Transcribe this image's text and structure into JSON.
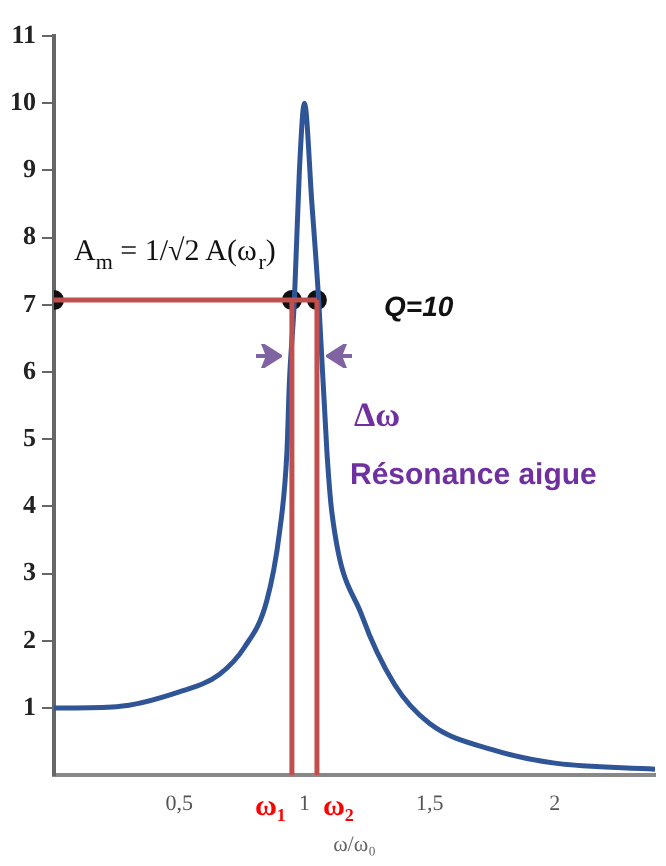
{
  "chart_data": {
    "type": "line",
    "xlabel": "ω/ω₀",
    "xlim": [
      0,
      2.4
    ],
    "ylim": [
      0,
      11
    ],
    "xticks": [
      {
        "value": 0.5,
        "label": "0,5"
      },
      {
        "value": 1,
        "label": "1"
      },
      {
        "value": 1.5,
        "label": "1,5"
      },
      {
        "value": 2,
        "label": "2"
      }
    ],
    "yticks": [
      1,
      2,
      3,
      4,
      5,
      6,
      7,
      8,
      9,
      10,
      11
    ],
    "grid": false,
    "legend": false,
    "series": [
      {
        "color": "#c0504d",
        "x": [
          0,
          0.95,
          1.05
        ],
        "values": [
          7.07,
          7.07,
          7.07
        ]
      },
      {
        "color": "#c0504d",
        "x": [
          0.95,
          0.95
        ],
        "values": [
          0,
          7.07
        ]
      },
      {
        "color": "#c0504d",
        "x": [
          1.05,
          1.05
        ],
        "values": [
          0,
          7.07
        ]
      },
      {
        "color": "#2f5597",
        "x": [
          0,
          0.25,
          0.5,
          0.66,
          0.76,
          0.85,
          0.9,
          0.93,
          0.94,
          0.96,
          0.98,
          1.0,
          1.03,
          1.057,
          1.09,
          1.11,
          1.23,
          1.36,
          1.5,
          1.76,
          2.0,
          2.4
        ],
        "values": [
          1,
          1.02,
          1.24,
          1.5,
          1.9,
          2.6,
          3.6,
          4.8,
          5.85,
          7.07,
          9.0,
          10,
          8.5,
          7.07,
          4.8,
          3.9,
          2.37,
          1.35,
          0.77,
          0.37,
          0.18,
          0.09
        ]
      },
      {
        "type": "scatter",
        "color": "#111111",
        "x": [
          0,
          0.95,
          1.05
        ],
        "values": [
          7.07,
          7.07,
          7.07
        ]
      }
    ],
    "annotations": [
      "A$_{m}$ = 1/√2 A(ω$_{r}$)",
      "Q=10",
      "Δω",
      "Résonance aigue",
      "ω₁",
      "ω₂"
    ]
  }
}
